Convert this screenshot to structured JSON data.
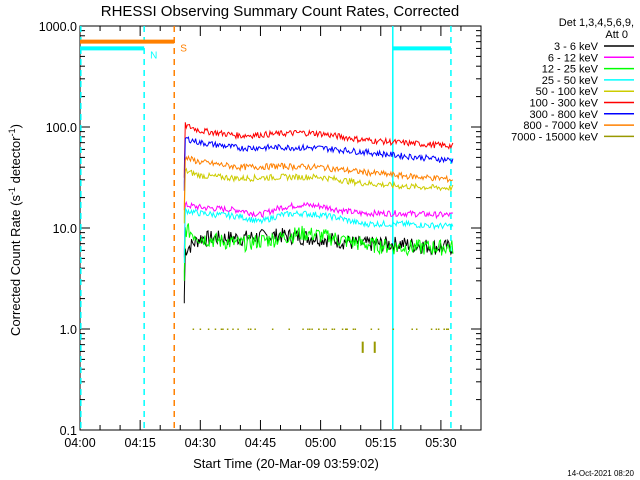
{
  "chart_data": {
    "type": "line",
    "title": "RHESSI Observing Summary Count Rates, Corrected",
    "xlabel": "Start Time (20-Mar-09 03:59:02)",
    "ylabel_main": "Corrected Count Rate (s",
    "ylabel_sup1": "-1",
    "ylabel_mid": " detector",
    "ylabel_sup2": "-1",
    "ylabel_end": ")",
    "yscale": "log",
    "ylim": [
      0.1,
      1000
    ],
    "xlim_minutes": [
      0,
      100
    ],
    "x_ticks": [
      {
        "m": 0,
        "label": "04:00"
      },
      {
        "m": 15,
        "label": "04:15"
      },
      {
        "m": 30,
        "label": "04:30"
      },
      {
        "m": 45,
        "label": "04:45"
      },
      {
        "m": 60,
        "label": "05:00"
      },
      {
        "m": 75,
        "label": "05:15"
      },
      {
        "m": 90,
        "label": "05:30"
      }
    ],
    "y_ticks": [
      {
        "v": 0.1,
        "label": "0.1"
      },
      {
        "v": 1,
        "label": "1.0"
      },
      {
        "v": 10,
        "label": "10.0"
      },
      {
        "v": 100,
        "label": "100.0"
      },
      {
        "v": 1000,
        "label": "1000.0"
      }
    ],
    "legend": {
      "header1": "Det 1,3,4,5,6,9,",
      "header2": "Att 0",
      "placement": "right"
    },
    "series": [
      {
        "name": "3 - 6 keV",
        "color": "#000000",
        "points": [
          [
            26,
            6
          ],
          [
            30,
            8
          ],
          [
            40,
            8
          ],
          [
            50,
            8.5
          ],
          [
            60,
            8
          ],
          [
            70,
            7
          ],
          [
            80,
            7
          ],
          [
            90,
            6.5
          ],
          [
            93,
            6.5
          ]
        ]
      },
      {
        "name": "6 - 12 keV",
        "color": "#ff00ff",
        "points": [
          [
            26,
            17
          ],
          [
            30,
            16
          ],
          [
            40,
            15
          ],
          [
            45,
            13.5
          ],
          [
            50,
            16
          ],
          [
            55,
            17
          ],
          [
            60,
            16.5
          ],
          [
            65,
            15
          ],
          [
            70,
            14
          ],
          [
            80,
            14
          ],
          [
            90,
            13.5
          ],
          [
            93,
            13.5
          ]
        ]
      },
      {
        "name": "12 - 25 keV",
        "color": "#00ff00",
        "points": [
          [
            26,
            10
          ],
          [
            30,
            8
          ],
          [
            40,
            7
          ],
          [
            50,
            8
          ],
          [
            55,
            9
          ],
          [
            60,
            8.5
          ],
          [
            70,
            7
          ],
          [
            80,
            6.5
          ],
          [
            90,
            6.5
          ],
          [
            93,
            6.5
          ]
        ]
      },
      {
        "name": "25 - 50 keV",
        "color": "#00ffff",
        "points": [
          [
            26,
            15
          ],
          [
            30,
            14
          ],
          [
            40,
            13
          ],
          [
            45,
            11.5
          ],
          [
            50,
            13.5
          ],
          [
            55,
            14
          ],
          [
            60,
            13.5
          ],
          [
            65,
            12.5
          ],
          [
            70,
            11
          ],
          [
            80,
            11
          ],
          [
            90,
            10.5
          ],
          [
            93,
            10.5
          ]
        ]
      },
      {
        "name": "50 - 100 keV",
        "color": "#cccc00",
        "points": [
          [
            26,
            37
          ],
          [
            30,
            33
          ],
          [
            40,
            31
          ],
          [
            50,
            32
          ],
          [
            60,
            32
          ],
          [
            70,
            28
          ],
          [
            80,
            26
          ],
          [
            90,
            25
          ],
          [
            93,
            25
          ]
        ]
      },
      {
        "name": "100 - 300 keV",
        "color": "#ff0000",
        "points": [
          [
            26,
            105
          ],
          [
            30,
            92
          ],
          [
            40,
            82
          ],
          [
            50,
            86
          ],
          [
            55,
            88
          ],
          [
            60,
            86
          ],
          [
            70,
            75
          ],
          [
            80,
            70
          ],
          [
            90,
            66
          ],
          [
            93,
            65
          ]
        ]
      },
      {
        "name": "300 - 800 keV",
        "color": "#0000ff",
        "points": [
          [
            26,
            78
          ],
          [
            30,
            70
          ],
          [
            40,
            62
          ],
          [
            50,
            63
          ],
          [
            60,
            62
          ],
          [
            70,
            57
          ],
          [
            80,
            52
          ],
          [
            90,
            48
          ],
          [
            93,
            47
          ]
        ]
      },
      {
        "name": "800 - 7000 keV",
        "color": "#ff8000",
        "points": [
          [
            26,
            50
          ],
          [
            30,
            45
          ],
          [
            40,
            40
          ],
          [
            50,
            41
          ],
          [
            60,
            40
          ],
          [
            70,
            36
          ],
          [
            80,
            33
          ],
          [
            90,
            31
          ],
          [
            93,
            30
          ]
        ]
      },
      {
        "name": "7000 - 15000 keV",
        "color": "#999900",
        "points": [
          [
            26,
            1
          ],
          [
            93,
            1
          ]
        ]
      }
    ],
    "flags": [
      {
        "label": "N",
        "color": "#00ffff",
        "level": 600,
        "m_start": 0,
        "m_end": 16
      },
      {
        "label": "S",
        "color": "#ff8000",
        "level": 700,
        "m_start": 0,
        "m_end": 23.5
      },
      {
        "label": "",
        "color": "#00ffff",
        "level": 600,
        "m_start": 78,
        "m_end": 92.5
      }
    ],
    "vlines": [
      {
        "m": 0.2,
        "color": "#00ffff",
        "style": "dashed"
      },
      {
        "m": 16,
        "color": "#00ffff",
        "style": "dashed"
      },
      {
        "m": 23.5,
        "color": "#ff8000",
        "style": "dashed"
      },
      {
        "m": 78,
        "color": "#00ffff",
        "style": "solid"
      },
      {
        "m": 92.5,
        "color": "#00ffff",
        "style": "dashed"
      }
    ]
  },
  "timestamp": "14-Oct-2021 08:20"
}
